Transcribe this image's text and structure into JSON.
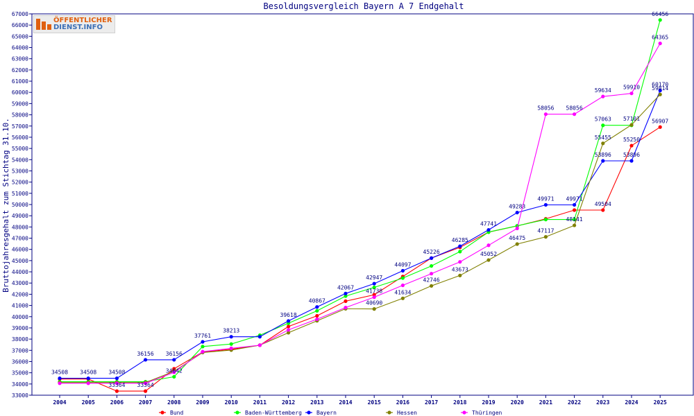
{
  "chart_data": {
    "type": "line",
    "title": "Besoldungsvergleich Bayern A 7 Endgehalt",
    "ylabel": "Bruttojahresgehalt zum Stichtag 31.10.",
    "xlabel": "",
    "ylim": [
      33000,
      67000
    ],
    "ytick_step": 1000,
    "grid": false,
    "legend_position": "bottom",
    "categories": [
      "2004",
      "2005",
      "2006",
      "2007",
      "2008",
      "2009",
      "2010",
      "2011",
      "2012",
      "2013",
      "2014",
      "2015",
      "2016",
      "2017",
      "2018",
      "2019",
      "2020",
      "2021",
      "2022",
      "2023",
      "2024",
      "2025"
    ],
    "series": [
      {
        "name": "Bund",
        "color": "#ff0000",
        "values": [
          34441,
          34441,
          33364,
          33364,
          35358,
          36856,
          37092,
          37457,
          39126,
          40076,
          41385,
          41958,
          43583,
          45226,
          46182,
          47541,
          48092,
          48727,
          49504,
          49504,
          55250,
          56907
        ],
        "labels": [
          null,
          null,
          "33364",
          "33364",
          null,
          null,
          null,
          null,
          null,
          null,
          null,
          null,
          null,
          null,
          null,
          null,
          null,
          null,
          null,
          "49504",
          "55250",
          "56907"
        ]
      },
      {
        "name": "Baden-Württemberg",
        "color": "#00ff00",
        "values": [
          34203,
          34203,
          34203,
          34203,
          34642,
          37337,
          37561,
          38345,
          39412,
          40523,
          41835,
          42611,
          43443,
          44523,
          45802,
          47543,
          48100,
          48664,
          48664,
          57063,
          57063,
          66456
        ],
        "labels": [
          null,
          null,
          null,
          null,
          "34642",
          null,
          null,
          null,
          null,
          null,
          null,
          null,
          null,
          null,
          null,
          null,
          null,
          null,
          null,
          "57063",
          null,
          "66456"
        ]
      },
      {
        "name": "Bayern",
        "color": "#0000ff",
        "values": [
          34508,
          34508,
          34508,
          36156,
          36156,
          37761,
          38213,
          38213,
          39618,
          40867,
          42067,
          42947,
          44097,
          45226,
          46285,
          47741,
          49283,
          49971,
          49971,
          53896,
          53896,
          60170
        ],
        "labels": [
          "34508",
          "34508",
          "34508",
          "36156",
          "36156",
          "37761",
          "38213",
          null,
          "39618",
          "40867",
          "42067",
          "42947",
          "44097",
          "45226",
          "46285",
          "47741",
          "49283",
          "49971",
          "49971",
          "53896",
          "53896",
          "60170"
        ]
      },
      {
        "name": "Hessen",
        "color": "#808000",
        "values": [
          34131,
          34131,
          34131,
          34131,
          35125,
          36809,
          37023,
          37457,
          38570,
          39633,
          40706,
          40690,
          41634,
          42746,
          43673,
          45052,
          46475,
          47117,
          48141,
          55455,
          57101,
          59814
        ],
        "labels": [
          null,
          null,
          null,
          null,
          null,
          null,
          null,
          null,
          null,
          null,
          null,
          "40690",
          "41634",
          "42746",
          "43673",
          "45052",
          "46475",
          "47117",
          "48141",
          "55455",
          "57101",
          "59814"
        ]
      },
      {
        "name": "Thüringen",
        "color": "#ff00ff",
        "values": [
          34064,
          34064,
          34064,
          34064,
          35038,
          36881,
          37180,
          37457,
          38827,
          39773,
          40811,
          41738,
          42796,
          43836,
          44888,
          46366,
          47873,
          58056,
          58056,
          59634,
          59910,
          64365
        ],
        "labels": [
          null,
          null,
          null,
          null,
          null,
          null,
          null,
          null,
          null,
          null,
          null,
          "41738",
          null,
          null,
          null,
          null,
          null,
          "58056",
          "58056",
          "59634",
          "59910",
          "64365"
        ]
      }
    ]
  },
  "logo": {
    "line1": "ÖFFENTLICHER",
    "line2": "DIENST.INFO"
  },
  "colors": {
    "frame": "#000080",
    "text": "#000080",
    "background": "#ffffff"
  }
}
